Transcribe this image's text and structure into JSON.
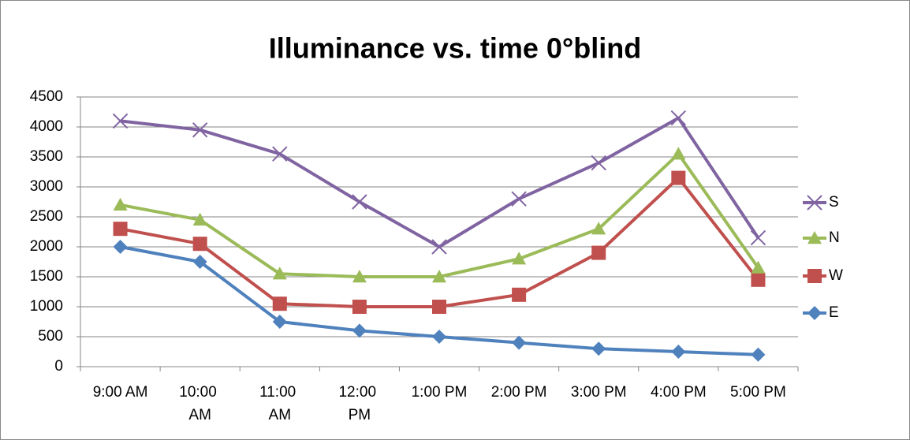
{
  "chart_data": {
    "type": "line",
    "title": "Illuminance vs. time 0°blind",
    "categories": [
      "9:00 AM",
      "10:00 AM",
      "11:00 AM",
      "12:00 PM",
      "1:00 PM",
      "2:00 PM",
      "3:00 PM",
      "4:00 PM",
      "5:00 PM"
    ],
    "series": [
      {
        "name": "S",
        "color": "#8064a2",
        "marker": "x",
        "values": [
          4100,
          3950,
          3550,
          2750,
          2000,
          2800,
          3400,
          4150,
          2150
        ]
      },
      {
        "name": "N",
        "color": "#9bbb59",
        "marker": "triangle",
        "values": [
          2700,
          2450,
          1550,
          1500,
          1500,
          1800,
          2300,
          3550,
          1650
        ]
      },
      {
        "name": "W",
        "color": "#c0504d",
        "marker": "square",
        "values": [
          2300,
          2050,
          1050,
          1000,
          1000,
          1200,
          1900,
          3150,
          1450
        ]
      },
      {
        "name": "E",
        "color": "#4f81bd",
        "marker": "diamond",
        "values": [
          2000,
          1750,
          750,
          600,
          500,
          400,
          300,
          250,
          200
        ]
      }
    ],
    "ylim": [
      0,
      4500
    ],
    "yticks": [
      0,
      500,
      1000,
      1500,
      2000,
      2500,
      3000,
      3500,
      4000,
      4500
    ],
    "grid": true,
    "legend": "right"
  }
}
